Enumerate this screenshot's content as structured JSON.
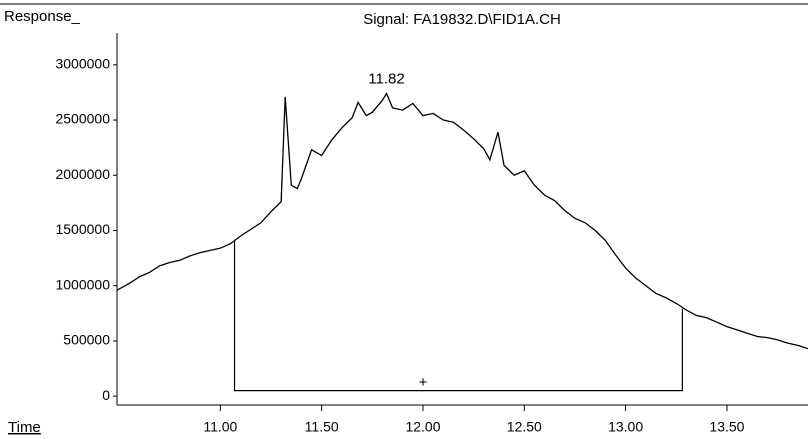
{
  "chart_data": {
    "type": "line",
    "y_label": "Response_",
    "x_label": "Time",
    "title": "Signal: FA19832.D\\FID1A.CH",
    "x": [
      10.49,
      10.55,
      10.6,
      10.65,
      10.7,
      10.75,
      10.8,
      10.85,
      10.9,
      10.95,
      11.0,
      11.05,
      11.1,
      11.15,
      11.2,
      11.25,
      11.3,
      11.32,
      11.35,
      11.38,
      11.4,
      11.45,
      11.5,
      11.55,
      11.6,
      11.65,
      11.68,
      11.72,
      11.75,
      11.8,
      11.82,
      11.85,
      11.9,
      11.95,
      12.0,
      12.05,
      12.1,
      12.15,
      12.2,
      12.25,
      12.3,
      12.33,
      12.37,
      12.4,
      12.45,
      12.5,
      12.55,
      12.6,
      12.65,
      12.7,
      12.75,
      12.8,
      12.85,
      12.9,
      12.95,
      13.0,
      13.05,
      13.1,
      13.15,
      13.2,
      13.25,
      13.3,
      13.35,
      13.4,
      13.45,
      13.5,
      13.55,
      13.6,
      13.65,
      13.7,
      13.75,
      13.8,
      13.85,
      13.9
    ],
    "series": [
      {
        "color": "#000000",
        "values": [
          960000,
          1020000,
          1080000,
          1120000,
          1180000,
          1210000,
          1230000,
          1270000,
          1300000,
          1320000,
          1340000,
          1380000,
          1450000,
          1510000,
          1570000,
          1670000,
          1760000,
          2710000,
          1910000,
          1880000,
          1970000,
          2230000,
          2180000,
          2320000,
          2430000,
          2520000,
          2660000,
          2540000,
          2570000,
          2680000,
          2740000,
          2610000,
          2590000,
          2650000,
          2540000,
          2560000,
          2500000,
          2480000,
          2410000,
          2330000,
          2240000,
          2140000,
          2390000,
          2090000,
          2000000,
          2040000,
          1910000,
          1820000,
          1770000,
          1680000,
          1610000,
          1570000,
          1500000,
          1410000,
          1280000,
          1160000,
          1070000,
          1000000,
          930000,
          890000,
          840000,
          780000,
          730000,
          710000,
          670000,
          630000,
          600000,
          570000,
          540000,
          530000,
          510000,
          480000,
          460000,
          430000
        ]
      }
    ],
    "annotations": [
      {
        "text": "11.82",
        "x": 11.82,
        "y": 2740000
      }
    ],
    "integration": {
      "x": [
        11.07,
        13.28
      ],
      "y": [
        1400000,
        790000
      ],
      "baseline": 50000,
      "label": "+",
      "label_x": 12.0,
      "label_y": 120000
    },
    "xlim": [
      10.49,
      13.9
    ],
    "ylim": [
      -80000,
      3270000
    ],
    "xticks": [
      {
        "value": 11,
        "label": "11.00"
      },
      {
        "value": 11.5,
        "label": "11.50"
      },
      {
        "value": 12,
        "label": "12.00"
      },
      {
        "value": 12.5,
        "label": "12.50"
      },
      {
        "value": 13,
        "label": "13.00"
      },
      {
        "value": 13.5,
        "label": "13.50"
      }
    ],
    "yticks": [
      0,
      500000,
      1000000,
      1500000,
      2000000,
      2500000,
      3000000
    ]
  }
}
